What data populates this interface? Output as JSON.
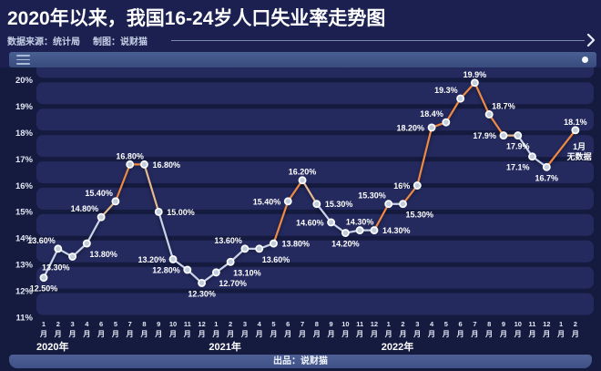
{
  "header": {
    "title": "2020年以来，我国16-24岁人口失业率走势图",
    "source": "数据来源：统计局",
    "credit": "制图：说财猫"
  },
  "toolbar": {
    "menu_icon": "hamburger-three-lines",
    "indicator_icon": "white-dot"
  },
  "footer": {
    "credit": "出品：说财猫"
  },
  "colors": {
    "page_bg": "#1b2050",
    "chart_bg": "#151a3f",
    "band": "#242a5e",
    "bar": "#43568c",
    "line_silver": "#c9d4ea",
    "line_tan": "#e5b98e",
    "line_orange": "#ee8a44",
    "marker_fill": "#c2cede",
    "marker_ring": "#ffffff",
    "label_text": "#ffffff",
    "axis_text": "#e2e8f4",
    "subtitle_text": "#c6d0e6"
  },
  "chart_data": {
    "type": "line",
    "title": "2020年以来，我国16-24岁人口失业率走势图",
    "xlabel": "",
    "ylabel": "",
    "ylim": [
      11,
      20
    ],
    "grid": "banded-rows",
    "legend": "none",
    "yticks": [
      "20%",
      "19%",
      "18%",
      "17%",
      "16%",
      "15%",
      "14%",
      "13%",
      "12%",
      "11%"
    ],
    "x_ticks": [
      "1",
      "2",
      "3",
      "4",
      "6",
      "5",
      "7",
      "8",
      "9",
      "10",
      "11",
      "12",
      "1",
      "2",
      "3",
      "4",
      "5",
      "6",
      "7",
      "8",
      "9",
      "10",
      "11",
      "12",
      "1",
      "2",
      "3",
      "4",
      "5",
      "6",
      "7",
      "8",
      "9",
      "10",
      "11",
      "12",
      "1",
      "2"
    ],
    "x_tick_suffix": "月",
    "year_labels": [
      {
        "index": 0,
        "text": "2020年"
      },
      {
        "index": 12,
        "text": "2021年"
      },
      {
        "index": 24,
        "text": "2022年"
      }
    ],
    "points": [
      {
        "x_index": 0,
        "value": 12.5,
        "label": "12.50%",
        "label_pos": "below"
      },
      {
        "x_index": 1,
        "value": 13.6,
        "label": "13.60%",
        "label_pos": "above-left"
      },
      {
        "x_index": 2,
        "value": 13.3,
        "label": "13.30%",
        "label_pos": "below-left"
      },
      {
        "x_index": 3,
        "value": 13.8,
        "label": "13.80%",
        "label_pos": "below-right"
      },
      {
        "x_index": 4,
        "value": 14.8,
        "label": "14.80%",
        "label_pos": "above-left"
      },
      {
        "x_index": 5,
        "value": 15.4,
        "label": "15.40%",
        "label_pos": "above-left"
      },
      {
        "x_index": 6,
        "value": 16.8,
        "label": "16.80%",
        "label_pos": "above"
      },
      {
        "x_index": 7,
        "value": 16.8,
        "label": "16.80%",
        "label_pos": "right"
      },
      {
        "x_index": 8,
        "value": 15.0,
        "label": "15.00%",
        "label_pos": "right"
      },
      {
        "x_index": 9,
        "value": 13.2,
        "label": "13.20%",
        "label_pos": "left"
      },
      {
        "x_index": 10,
        "value": 12.8,
        "label": "12.80%",
        "label_pos": "left"
      },
      {
        "x_index": 11,
        "value": 12.3,
        "label": "12.30%",
        "label_pos": "below"
      },
      {
        "x_index": 12,
        "value": 12.7,
        "label": "12.70%",
        "label_pos": "below-right"
      },
      {
        "x_index": 13,
        "value": 13.1,
        "label": "13.10%",
        "label_pos": "below-right"
      },
      {
        "x_index": 14,
        "value": 13.6,
        "label": "13.60%",
        "label_pos": "above-left"
      },
      {
        "x_index": 15,
        "value": 13.6,
        "label": "13.60%",
        "label_pos": "below-right"
      },
      {
        "x_index": 16,
        "value": 13.8,
        "label": "13.80%",
        "label_pos": "right"
      },
      {
        "x_index": 17,
        "value": 15.4,
        "label": "15.40%",
        "label_pos": "left"
      },
      {
        "x_index": 18,
        "value": 16.2,
        "label": "16.20%",
        "label_pos": "above"
      },
      {
        "x_index": 19,
        "value": 15.3,
        "label": "15.30%",
        "label_pos": "right"
      },
      {
        "x_index": 20,
        "value": 14.6,
        "label": "14.60%",
        "label_pos": "left"
      },
      {
        "x_index": 21,
        "value": 14.2,
        "label": "14.20%",
        "label_pos": "below"
      },
      {
        "x_index": 22,
        "value": 14.3,
        "label": "14.30%",
        "label_pos": "above"
      },
      {
        "x_index": 23,
        "value": 14.3,
        "label": "14.30%",
        "label_pos": "right"
      },
      {
        "x_index": 24,
        "value": 15.3,
        "label": "15.30%",
        "label_pos": "above-left"
      },
      {
        "x_index": 25,
        "value": 15.3,
        "label": "15.30%",
        "label_pos": "below-right"
      },
      {
        "x_index": 26,
        "value": 16.0,
        "label": "16%",
        "label_pos": "left"
      },
      {
        "x_index": 27,
        "value": 18.2,
        "label": "18.20%",
        "label_pos": "left"
      },
      {
        "x_index": 28,
        "value": 18.4,
        "label": "18.4%",
        "label_pos": "above-left"
      },
      {
        "x_index": 29,
        "value": 19.3,
        "label": "19.3%",
        "label_pos": "above-left"
      },
      {
        "x_index": 30,
        "value": 19.9,
        "label": "19.9%",
        "label_pos": "above"
      },
      {
        "x_index": 31,
        "value": 18.7,
        "label": "18.7%",
        "label_pos": "above-right"
      },
      {
        "x_index": 32,
        "value": 17.9,
        "label": "17.9%",
        "label_pos": "left"
      },
      {
        "x_index": 33,
        "value": 17.9,
        "label": "17.9%",
        "label_pos": "below"
      },
      {
        "x_index": 34,
        "value": 17.1,
        "label": "17.1%",
        "label_pos": "below-left"
      },
      {
        "x_index": 35,
        "value": 16.7,
        "label": "16.7%",
        "label_pos": "below"
      },
      {
        "x_index": 37,
        "value": 18.1,
        "label": "18.1%",
        "label_pos": "above"
      }
    ],
    "segment_colors": [
      "silver",
      "silver",
      "silver",
      "silver",
      "tan",
      "orange",
      "orange",
      "tan",
      "silver",
      "silver",
      "silver",
      "silver",
      "silver",
      "silver",
      "silver",
      "silver",
      "orange",
      "orange",
      "tan",
      "silver",
      "silver",
      "silver",
      "silver",
      "orange",
      "silver",
      "orange",
      "orange",
      "orange",
      "orange",
      "orange",
      "orange",
      "orange",
      "tan",
      "silver",
      "silver",
      "orange"
    ],
    "no_data_annotation": {
      "lines": [
        "1月",
        "无数据"
      ],
      "gap_x_index": 36
    }
  }
}
